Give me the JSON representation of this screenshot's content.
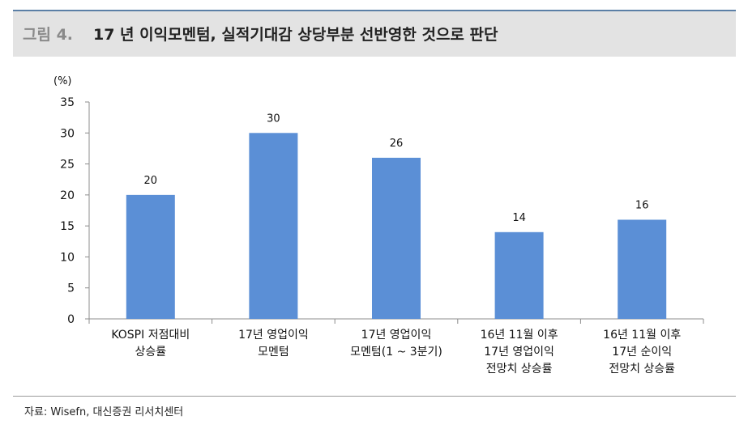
{
  "header": {
    "figure_label": "그림 4.",
    "title": "17 년 이익모멘텀, 실적기대감 상당부분 선반영한 것으로 판단"
  },
  "chart_data": {
    "type": "bar",
    "unit_label": "(%)",
    "categories": [
      [
        "KOSPI 저점대비",
        "상승률"
      ],
      [
        "17년 영업이익",
        "모멘텀"
      ],
      [
        "17년 영업이익",
        "모멘텀(1 ~ 3분기)"
      ],
      [
        "16년 11월 이후",
        "17년 영업이익",
        "전망치 상승률"
      ],
      [
        "16년 11월 이후",
        "17년 순이익",
        "전망치 상승률"
      ]
    ],
    "values": [
      20,
      30,
      26,
      14,
      16
    ],
    "data_labels": [
      "20",
      "30",
      "26",
      "14",
      "16"
    ],
    "ylim": [
      0,
      35
    ],
    "yticks": [
      0,
      5,
      10,
      15,
      20,
      25,
      30,
      35
    ],
    "bar_color": "#5b8fd6",
    "grid": false,
    "legend": "none"
  },
  "source": "자료: Wisefn, 대신증권 리서치센터"
}
